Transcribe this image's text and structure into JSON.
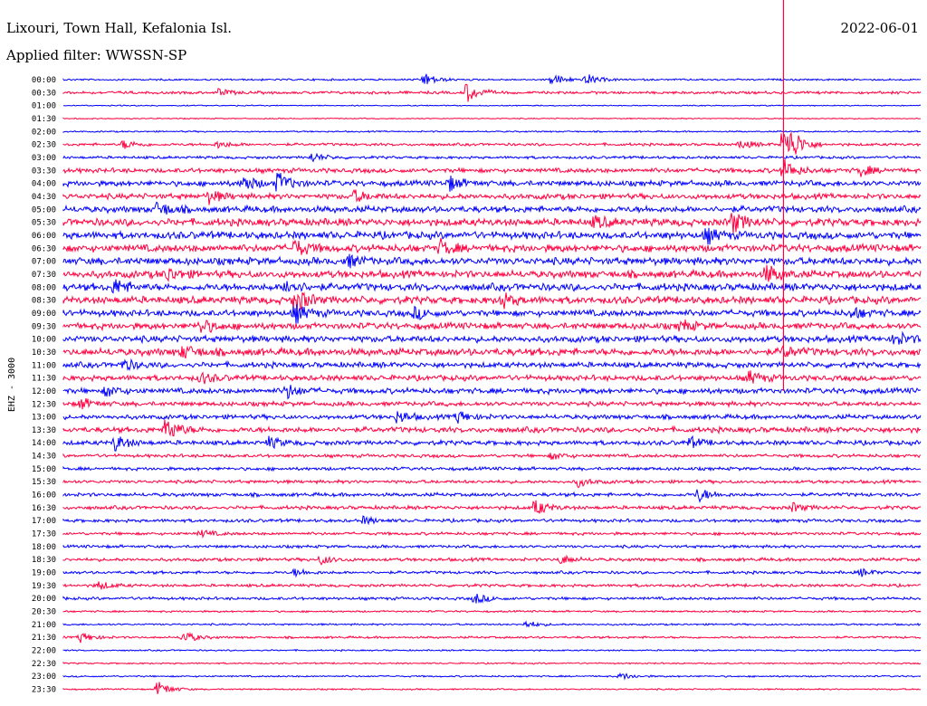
{
  "header": {
    "station": "Lixouri, Town Hall, Kefalonia Isl.",
    "date": "2022-06-01",
    "filter": "Applied filter: WWSSN-SP"
  },
  "colors": {
    "even_trace": "#0000ff",
    "odd_trace": "#ff0040",
    "text": "#000000",
    "background": "#ffffff"
  },
  "chart_data": {
    "type": "helicorder",
    "title": "Lixouri, Town Hall, Kefalonia Isl.",
    "date": "2022-06-01",
    "filter": "WWSSN-SP",
    "ylabel": "EHZ - 3000",
    "row_duration_minutes": 30,
    "rows": [
      {
        "time": "00:00",
        "noise": 1,
        "events": [
          {
            "pos": 0.42,
            "amp": 8
          },
          {
            "pos": 0.57,
            "amp": 7
          },
          {
            "pos": 0.61,
            "amp": 6
          }
        ]
      },
      {
        "time": "00:30",
        "noise": 1.5,
        "events": [
          {
            "pos": 0.18,
            "amp": 4
          },
          {
            "pos": 0.47,
            "amp": 11
          }
        ]
      },
      {
        "time": "01:00",
        "noise": 0.6,
        "events": []
      },
      {
        "time": "01:30",
        "noise": 0.6,
        "events": []
      },
      {
        "time": "02:00",
        "noise": 0.8,
        "events": []
      },
      {
        "time": "02:30",
        "noise": 1.5,
        "events": [
          {
            "pos": 0.07,
            "amp": 5
          },
          {
            "pos": 0.18,
            "amp": 4
          },
          {
            "pos": 0.79,
            "amp": 5
          },
          {
            "pos": 0.84,
            "amp": 40
          }
        ]
      },
      {
        "time": "03:00",
        "noise": 1.5,
        "events": [
          {
            "pos": 0.29,
            "amp": 5
          }
        ]
      },
      {
        "time": "03:30",
        "noise": 2.5,
        "events": [
          {
            "pos": 0.84,
            "amp": 12
          },
          {
            "pos": 0.93,
            "amp": 6
          }
        ]
      },
      {
        "time": "04:00",
        "noise": 3,
        "events": [
          {
            "pos": 0.21,
            "amp": 9
          },
          {
            "pos": 0.25,
            "amp": 12
          },
          {
            "pos": 0.45,
            "amp": 8
          }
        ]
      },
      {
        "time": "04:30",
        "noise": 3,
        "events": [
          {
            "pos": 0.17,
            "amp": 7
          },
          {
            "pos": 0.34,
            "amp": 6
          }
        ]
      },
      {
        "time": "05:00",
        "noise": 3.5,
        "events": [
          {
            "pos": 0.11,
            "amp": 8
          }
        ]
      },
      {
        "time": "05:30",
        "noise": 4,
        "events": [
          {
            "pos": 0.78,
            "amp": 12
          },
          {
            "pos": 0.62,
            "amp": 6
          }
        ]
      },
      {
        "time": "06:00",
        "noise": 4,
        "events": [
          {
            "pos": 0.75,
            "amp": 8
          }
        ]
      },
      {
        "time": "06:30",
        "noise": 4,
        "events": [
          {
            "pos": 0.27,
            "amp": 9
          },
          {
            "pos": 0.44,
            "amp": 8
          }
        ]
      },
      {
        "time": "07:00",
        "noise": 4,
        "events": [
          {
            "pos": 0.33,
            "amp": 7
          }
        ]
      },
      {
        "time": "07:30",
        "noise": 4,
        "events": [
          {
            "pos": 0.12,
            "amp": 8
          },
          {
            "pos": 0.82,
            "amp": 10
          }
        ]
      },
      {
        "time": "08:00",
        "noise": 4,
        "events": [
          {
            "pos": 0.06,
            "amp": 8
          },
          {
            "pos": 0.26,
            "amp": 9
          }
        ]
      },
      {
        "time": "08:30",
        "noise": 4,
        "events": [
          {
            "pos": 0.27,
            "amp": 14
          },
          {
            "pos": 0.51,
            "amp": 8
          }
        ]
      },
      {
        "time": "09:00",
        "noise": 3.5,
        "events": [
          {
            "pos": 0.27,
            "amp": 10
          },
          {
            "pos": 0.41,
            "amp": 6
          },
          {
            "pos": 0.92,
            "amp": 6
          }
        ]
      },
      {
        "time": "09:30",
        "noise": 3.5,
        "events": [
          {
            "pos": 0.16,
            "amp": 8
          },
          {
            "pos": 0.72,
            "amp": 6
          }
        ]
      },
      {
        "time": "10:00",
        "noise": 3.5,
        "events": [
          {
            "pos": 0.97,
            "amp": 8
          }
        ]
      },
      {
        "time": "10:30",
        "noise": 4,
        "events": [
          {
            "pos": 0.14,
            "amp": 7
          },
          {
            "pos": 0.84,
            "amp": 6
          }
        ]
      },
      {
        "time": "11:00",
        "noise": 3,
        "events": [
          {
            "pos": 0.07,
            "amp": 6
          }
        ]
      },
      {
        "time": "11:30",
        "noise": 3,
        "events": [
          {
            "pos": 0.16,
            "amp": 6
          },
          {
            "pos": 0.8,
            "amp": 7
          }
        ]
      },
      {
        "time": "12:00",
        "noise": 3,
        "events": [
          {
            "pos": 0.05,
            "amp": 6
          },
          {
            "pos": 0.26,
            "amp": 8
          }
        ]
      },
      {
        "time": "12:30",
        "noise": 2.5,
        "events": [
          {
            "pos": 0.02,
            "amp": 6
          }
        ]
      },
      {
        "time": "13:00",
        "noise": 2.5,
        "events": [
          {
            "pos": 0.39,
            "amp": 7
          },
          {
            "pos": 0.46,
            "amp": 7
          }
        ]
      },
      {
        "time": "13:30",
        "noise": 3,
        "events": [
          {
            "pos": 0.12,
            "amp": 14
          }
        ]
      },
      {
        "time": "14:00",
        "noise": 2.5,
        "events": [
          {
            "pos": 0.06,
            "amp": 9
          },
          {
            "pos": 0.24,
            "amp": 6
          },
          {
            "pos": 0.73,
            "amp": 6
          }
        ]
      },
      {
        "time": "14:30",
        "noise": 1.8,
        "events": [
          {
            "pos": 0.57,
            "amp": 4
          }
        ]
      },
      {
        "time": "15:00",
        "noise": 1.8,
        "events": []
      },
      {
        "time": "15:30",
        "noise": 1.8,
        "events": [
          {
            "pos": 0.6,
            "amp": 5
          }
        ]
      },
      {
        "time": "16:00",
        "noise": 2,
        "events": [
          {
            "pos": 0.74,
            "amp": 8
          }
        ]
      },
      {
        "time": "16:30",
        "noise": 2,
        "events": [
          {
            "pos": 0.55,
            "amp": 9
          },
          {
            "pos": 0.85,
            "amp": 5
          }
        ]
      },
      {
        "time": "17:00",
        "noise": 1.8,
        "events": [
          {
            "pos": 0.35,
            "amp": 4
          }
        ]
      },
      {
        "time": "17:30",
        "noise": 1.6,
        "events": [
          {
            "pos": 0.16,
            "amp": 4
          }
        ]
      },
      {
        "time": "18:00",
        "noise": 1.6,
        "events": []
      },
      {
        "time": "18:30",
        "noise": 1.8,
        "events": [
          {
            "pos": 0.3,
            "amp": 5
          },
          {
            "pos": 0.58,
            "amp": 5
          }
        ]
      },
      {
        "time": "19:00",
        "noise": 1.6,
        "events": [
          {
            "pos": 0.27,
            "amp": 4
          },
          {
            "pos": 0.93,
            "amp": 4
          }
        ]
      },
      {
        "time": "19:30",
        "noise": 1.6,
        "events": [
          {
            "pos": 0.04,
            "amp": 5
          }
        ]
      },
      {
        "time": "20:00",
        "noise": 1.6,
        "events": [
          {
            "pos": 0.48,
            "amp": 6
          }
        ]
      },
      {
        "time": "20:30",
        "noise": 1,
        "events": []
      },
      {
        "time": "21:00",
        "noise": 1,
        "events": [
          {
            "pos": 0.54,
            "amp": 4
          }
        ]
      },
      {
        "time": "21:30",
        "noise": 1.2,
        "events": [
          {
            "pos": 0.02,
            "amp": 6
          },
          {
            "pos": 0.14,
            "amp": 7
          }
        ]
      },
      {
        "time": "22:00",
        "noise": 0.8,
        "events": []
      },
      {
        "time": "22:30",
        "noise": 0.8,
        "events": []
      },
      {
        "time": "23:00",
        "noise": 0.9,
        "events": [
          {
            "pos": 0.65,
            "amp": 4
          }
        ]
      },
      {
        "time": "23:30",
        "noise": 0.8,
        "events": [
          {
            "pos": 0.11,
            "amp": 9
          }
        ]
      }
    ],
    "big_event": {
      "time": "02:30",
      "pos": 0.84
    }
  }
}
